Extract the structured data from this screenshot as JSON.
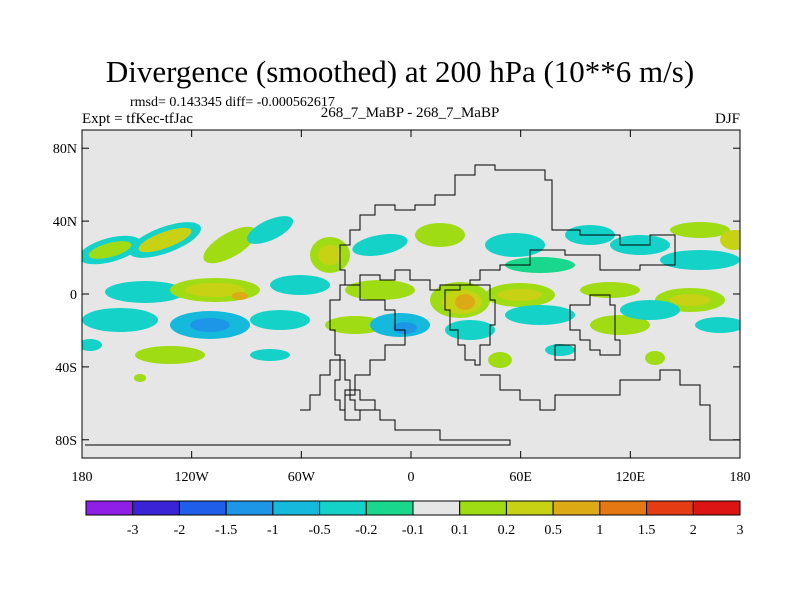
{
  "title": "Divergence (smoothed) at 200 hPa (10**6 m/s)",
  "stats": "rmsd= 0.143345 diff= -0.000562617",
  "experiment": "Expt = tfKec-tfJac",
  "run": "268_7_MaBP - 268_7_MaBP",
  "season": "DJF",
  "map": {
    "x_ticks": [
      {
        "lon": -180,
        "label": "180"
      },
      {
        "lon": -120,
        "label": "120W"
      },
      {
        "lon": -60,
        "label": "60W"
      },
      {
        "lon": 0,
        "label": "0"
      },
      {
        "lon": 60,
        "label": "60E"
      },
      {
        "lon": 120,
        "label": "120E"
      },
      {
        "lon": 180,
        "label": "180"
      }
    ],
    "y_ticks": [
      {
        "lat": 80,
        "label": "80N"
      },
      {
        "lat": 40,
        "label": "40N"
      },
      {
        "lat": 0,
        "label": "0"
      },
      {
        "lat": -40,
        "label": "40S"
      },
      {
        "lat": -80,
        "label": "80S"
      }
    ],
    "lon_range": [
      -180,
      180
    ],
    "lat_range": [
      -90,
      90
    ],
    "background_color": "#e6e6e6"
  },
  "colorbar": {
    "labels": [
      "-3",
      "-2",
      "-1.5",
      "-1",
      "-0.5",
      "-0.2",
      "-0.1",
      "0.1",
      "0.2",
      "0.5",
      "1",
      "1.5",
      "2",
      "3"
    ],
    "colors": [
      "#8f1ee6",
      "#3a22d6",
      "#1e5ee8",
      "#1e96e8",
      "#14b9dc",
      "#14d2c8",
      "#19d78c",
      "#e6e6e6",
      "#a0dc14",
      "#c8d214",
      "#dcaa14",
      "#e67814",
      "#e63c14",
      "#dc1414"
    ]
  }
}
